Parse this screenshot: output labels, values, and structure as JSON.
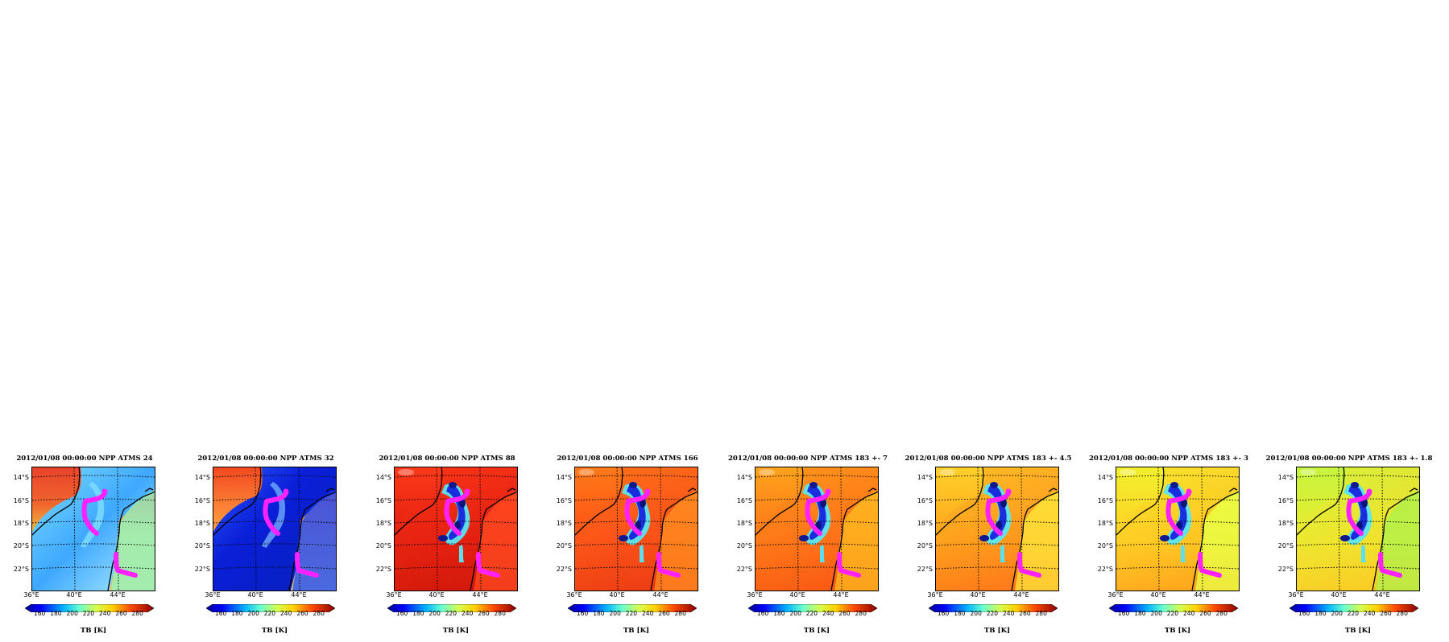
{
  "panels": [
    {
      "title": "2012/01/08 00:00:00  NPP ATMS 24",
      "palette": "bright"
    },
    {
      "title": "2012/01/08 00:00:00  NPP ATMS 32",
      "palette": "cold"
    },
    {
      "title": "2012/01/08 00:00:00  NPP ATMS 88",
      "palette": "hot"
    },
    {
      "title": "2012/01/08 00:00:00  NPP ATMS 166",
      "palette": "warm"
    },
    {
      "title": "2012/01/08 00:00:00  NPP ATMS 183 +- 7",
      "palette": "orange"
    },
    {
      "title": "2012/01/08 00:00:00  NPP ATMS 183 +- 4.5",
      "palette": "orange-yellow"
    },
    {
      "title": "2012/01/08 00:00:00  NPP ATMS 183 +- 3",
      "palette": "yellow"
    },
    {
      "title": "2012/01/08 00:00:00  NPP ATMS 183 +- 1.8",
      "palette": "green-yellow"
    }
  ],
  "lat_labels": [
    "14°S",
    "16°S",
    "18°S",
    "20°S",
    "22°S"
  ],
  "lon_labels": [
    "36°E",
    "40°E",
    "44°E"
  ],
  "colorbar": {
    "ticks": [
      "160",
      "180",
      "200",
      "220",
      "240",
      "260",
      "280"
    ],
    "label": "TB [K]",
    "range": [
      150,
      300
    ]
  },
  "colors": {
    "track": "#ff22ff",
    "coast": "#000000",
    "grid": "#000000"
  }
}
